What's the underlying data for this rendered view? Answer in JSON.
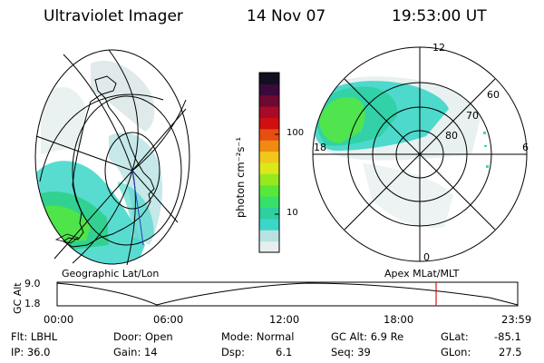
{
  "header": {
    "instrument": "Ultraviolet Imager",
    "date": "14 Nov 07",
    "time": "19:53:00 UT"
  },
  "colorbar": {
    "unit_label": "photon cm⁻²s⁻¹",
    "ticks": [
      "100",
      "10"
    ],
    "colors": [
      "#e6eeee",
      "#b8e2e2",
      "#3cd6c8",
      "#2ecfa0",
      "#36e06a",
      "#58e83a",
      "#98e81e",
      "#dce81a",
      "#f0c81c",
      "#f08a10",
      "#e84e10",
      "#d01010",
      "#a80a28",
      "#6e0a32",
      "#3a0a3a",
      "#101020"
    ]
  },
  "left_panel": {
    "caption": "Geographic Lat/Lon"
  },
  "right_panel": {
    "caption": "Apex MLat/MLT",
    "mlt_labels": [
      "12",
      "18",
      "6",
      "0"
    ],
    "lat_labels": [
      "60",
      "70",
      "80"
    ]
  },
  "altitude_plot": {
    "ylabel": "GC Alt",
    "yticks": [
      "9.0",
      "1.8"
    ],
    "xticks": [
      "00:00",
      "06:00",
      "12:00",
      "18:00",
      "23:59"
    ],
    "current_marker_time": "19:53",
    "marker_color": "#e01010"
  },
  "footer": {
    "flt": "Flt: LBHL",
    "ip": "IP: 36.0",
    "door": "Door: Open",
    "gain": "Gain: 14",
    "mode": "Mode: Normal",
    "dsp_label": "Dsp:",
    "dsp_value": "6.1",
    "gc_alt": "GC Alt: 6.9 Re",
    "seq": "Seq: 39",
    "glat_label": "GLat:",
    "glat_value": "-85.1",
    "glon_label": "GLon:",
    "glon_value": "27.5"
  }
}
